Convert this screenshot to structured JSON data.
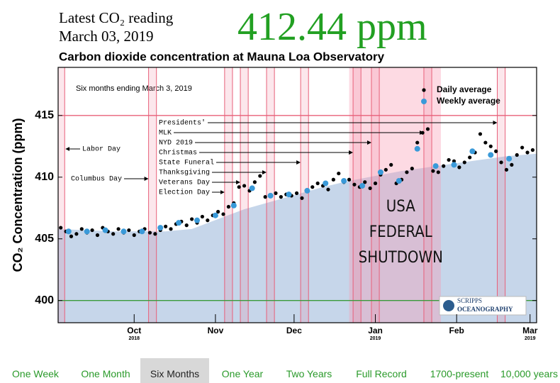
{
  "header": {
    "latest_label": "Latest CO₂ reading",
    "date": "March 03, 2019",
    "reading": "412.44 ppm"
  },
  "chart_data": {
    "type": "scatter",
    "title": "Carbon dioxide concentration at Mauna Loa Observatory",
    "subtitle": "Six months ending March 3, 2019",
    "ylabel": "CO₂ Concentration (ppm)",
    "xlim": [
      -1,
      181.5
    ],
    "ylim": [
      398.2,
      418.9
    ],
    "yticks": [
      400,
      405,
      410,
      415
    ],
    "xticks": [
      {
        "value": 28,
        "label": "Oct"
      },
      {
        "value": 59,
        "label": "Nov"
      },
      {
        "value": 89,
        "label": "Dec"
      },
      {
        "value": 120,
        "label": "Jan"
      },
      {
        "value": 151,
        "label": "Feb"
      },
      {
        "value": 179,
        "label": "Mar"
      }
    ],
    "year_labels": [
      {
        "value": 28,
        "label": "2018"
      },
      {
        "value": 120,
        "label": "2019"
      },
      {
        "value": 179,
        "label": "2019"
      }
    ],
    "legend": "top-right",
    "series": [
      {
        "name": "Daily average",
        "color": "#000000",
        "x": [
          0,
          2,
          4,
          6,
          8,
          10,
          12,
          14,
          16,
          18,
          20,
          22,
          24,
          26,
          28,
          30,
          32,
          34,
          36,
          38,
          40,
          42,
          44,
          46,
          48,
          50,
          52,
          54,
          56,
          58,
          60,
          62,
          64,
          66,
          68,
          70,
          72,
          74,
          76,
          78,
          80,
          82,
          84,
          86,
          88,
          90,
          92,
          94,
          96,
          98,
          100,
          102,
          104,
          106,
          108,
          110,
          112,
          114,
          116,
          118,
          120,
          122,
          124,
          126,
          128,
          130,
          132,
          134,
          136,
          138,
          140,
          142,
          144,
          146,
          148,
          150,
          152,
          154,
          156,
          158,
          160,
          162,
          164,
          166,
          168,
          170,
          172,
          174,
          176,
          178,
          180
        ],
        "values": [
          405.9,
          405.6,
          405.2,
          405.4,
          405.8,
          405.5,
          405.7,
          405.3,
          405.9,
          405.6,
          405.4,
          405.8,
          405.5,
          405.7,
          405.3,
          405.6,
          405.8,
          405.5,
          405.4,
          405.7,
          406.0,
          405.8,
          406.2,
          406.4,
          406.1,
          406.6,
          406.3,
          406.8,
          406.5,
          406.9,
          407.2,
          407.0,
          407.6,
          407.9,
          409.2,
          409.3,
          408.9,
          409.6,
          410.1,
          408.4,
          408.5,
          408.7,
          408.4,
          408.6,
          408.5,
          408.7,
          408.3,
          408.9,
          409.2,
          409.5,
          409.3,
          409.0,
          409.8,
          410.3,
          409.6,
          409.8,
          409.4,
          409.2,
          409.6,
          409.1,
          409.5,
          410.2,
          410.6,
          411.0,
          409.5,
          409.8,
          410.4,
          410.7,
          412.8,
          413.6,
          413.9,
          410.5,
          410.4,
          410.9,
          411.4,
          411.3,
          410.8,
          411.2,
          411.6,
          412.0,
          413.5,
          412.8,
          412.5,
          412.1,
          411.2,
          410.6,
          411.0,
          411.8,
          412.4,
          412.0,
          412.2
        ]
      },
      {
        "name": "Weekly average",
        "color": "#3a9ad9",
        "x": [
          3,
          10,
          17,
          24,
          31,
          38,
          45,
          52,
          59,
          66,
          73,
          80,
          87,
          94,
          101,
          108,
          115,
          122,
          129,
          136,
          143,
          150,
          157,
          164,
          171
        ],
        "values": [
          405.6,
          405.6,
          405.7,
          405.6,
          405.6,
          405.9,
          406.3,
          406.5,
          406.9,
          407.7,
          409.1,
          408.5,
          408.6,
          408.9,
          409.5,
          409.7,
          409.3,
          410.4,
          409.7,
          412.3,
          410.9,
          411.0,
          412.1,
          411.8,
          411.5
        ]
      }
    ],
    "fit": {
      "color": "#c6d6ea",
      "x": [
        -1,
        20,
        40,
        50,
        60,
        70,
        80,
        90,
        100,
        110,
        120,
        130,
        140,
        150,
        160,
        170,
        181.5
      ],
      "values": [
        405.8,
        405.6,
        405.6,
        405.8,
        406.6,
        407.4,
        408.0,
        408.6,
        409.2,
        409.7,
        410.1,
        410.5,
        410.8,
        411.1,
        411.4,
        411.7,
        411.9
      ]
    },
    "hlines": [
      {
        "value": 415,
        "color": "#e8607a"
      },
      {
        "value": 400,
        "color": "#3a9a3a"
      }
    ],
    "holidays": [
      {
        "name": "Labor Day",
        "day": 0
      },
      {
        "name": "Columbus Day",
        "day": 35
      },
      {
        "name": "Election Day",
        "day": 64
      },
      {
        "name": "Veterans Day",
        "day": 70
      },
      {
        "name": "Thanksgiving",
        "day": 80
      },
      {
        "name": "State Funeral",
        "day": 93
      },
      {
        "name": "Christmas",
        "day": 113
      },
      {
        "name": "NYD 2019",
        "day": 120
      },
      {
        "name": "MLK",
        "day": 140
      },
      {
        "name": "Presidents'",
        "day": 168
      }
    ],
    "shutdown": {
      "label": [
        "USA",
        "FEDERAL",
        "SHUTDOWN"
      ],
      "start": 110,
      "end": 145
    },
    "logo": [
      "SCRIPPS",
      "OCEANOGRAPHY"
    ]
  },
  "nav": [
    "One Week",
    "One Month",
    "Six Months",
    "One Year",
    "Two Years",
    "Full Record",
    "1700-present",
    "10,000 years"
  ],
  "nav_selected": "Six Months"
}
